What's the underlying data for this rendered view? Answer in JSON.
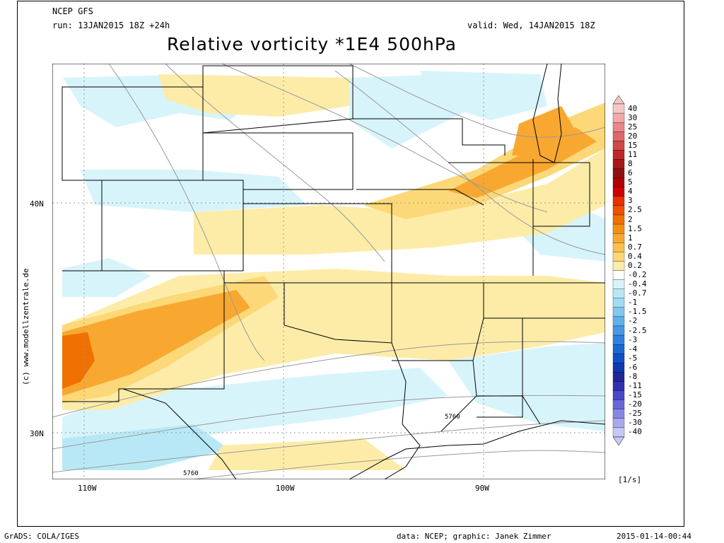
{
  "header": {
    "model": "NCEP GFS",
    "run": "run: 13JAN2015 18Z +24h",
    "valid": "valid: Wed, 14JAN2015 18Z",
    "title": "Relative vorticity *1E4 500hPa"
  },
  "map": {
    "lon_labels": [
      "110W",
      "100W",
      "90W"
    ],
    "lat_labels": [
      "40N",
      "30N"
    ],
    "contour_labels": [
      "5760",
      "5760"
    ],
    "side_credit": "(c) www.modellzentrale.de"
  },
  "colorbar": {
    "unit": "[1/s]",
    "levels": [
      "40",
      "30",
      "25",
      "20",
      "15",
      "11",
      "8",
      "6",
      "5",
      "4",
      "3",
      "2.5",
      "2",
      "1.5",
      "1",
      "0.7",
      "0.4",
      "0.2",
      "-0.2",
      "-0.4",
      "-0.7",
      "-1",
      "-1.5",
      "-2",
      "-2.5",
      "-3",
      "-4",
      "-5",
      "-6",
      "-8",
      "-11",
      "-15",
      "-20",
      "-25",
      "-30",
      "-40"
    ],
    "colors": [
      "#f5c8c8",
      "#f0a8a8",
      "#e88888",
      "#e06868",
      "#d04848",
      "#c02828",
      "#a81818",
      "#901010",
      "#b00000",
      "#d00000",
      "#e83000",
      "#f05000",
      "#f07000",
      "#f49010",
      "#f8a830",
      "#fbc050",
      "#fcd878",
      "#fdeca8",
      "#ffffff",
      "#d8f4fb",
      "#b8e8f6",
      "#a0dcf2",
      "#80c8ee",
      "#60b0ea",
      "#4898e6",
      "#3080e0",
      "#1868d6",
      "#1050c8",
      "#1038b0",
      "#202898",
      "#3030b0",
      "#4848c8",
      "#6868d8",
      "#8888e4",
      "#a8a8ee",
      "#c8c8f6"
    ],
    "levels_note": ""
  },
  "footer": {
    "left": "GrADS: COLA/IGES",
    "center": "data: NCEP; graphic: Janek Zimmer",
    "right": "2015-01-14-00:44"
  }
}
